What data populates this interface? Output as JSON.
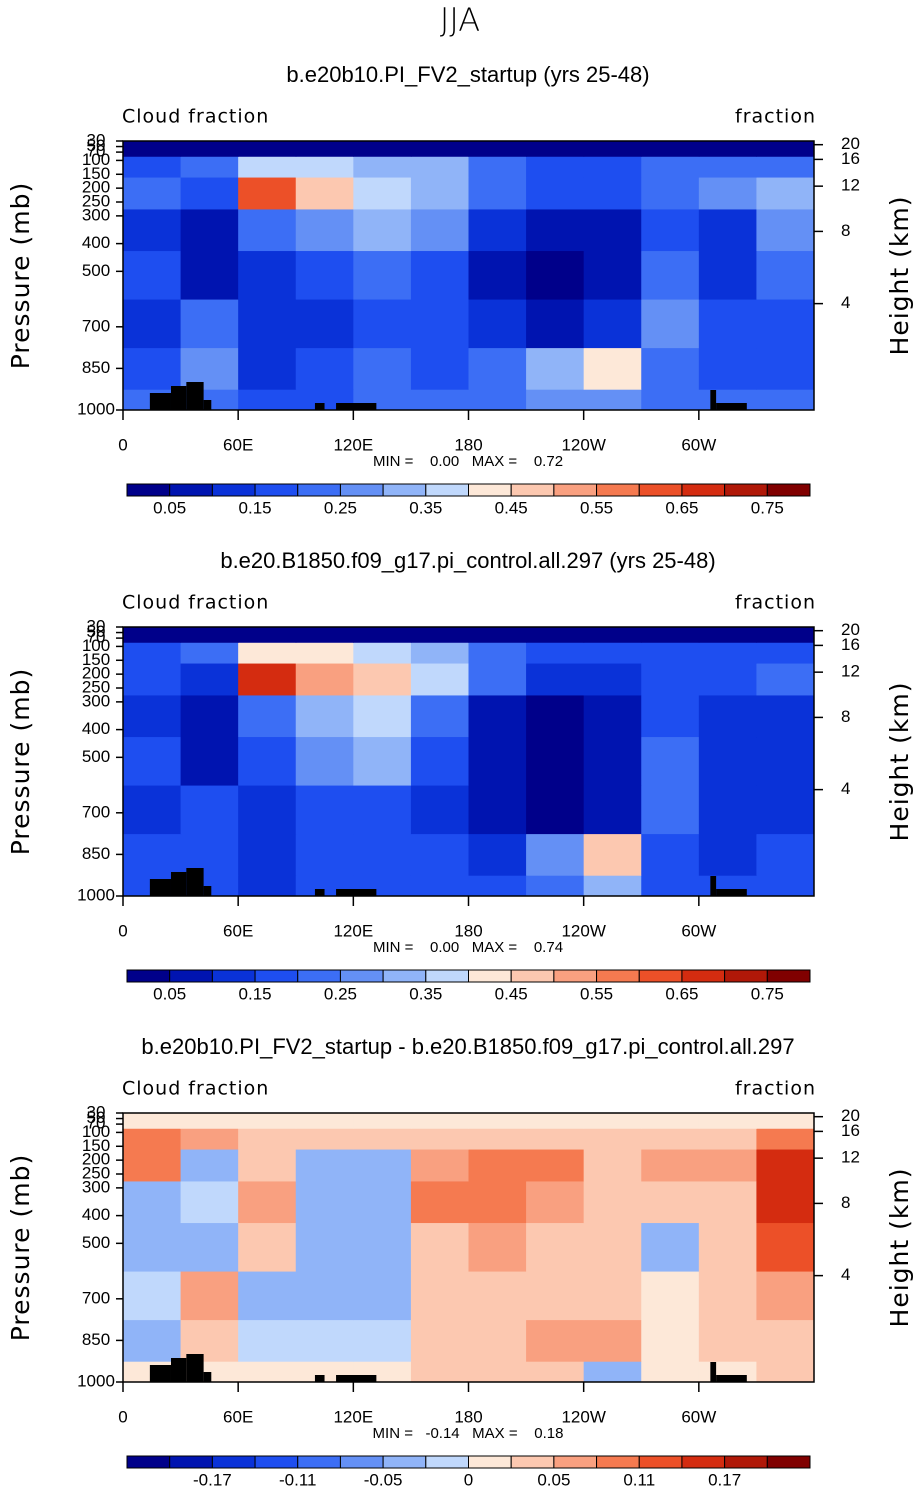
{
  "title": "JJA",
  "chart_data": [
    {
      "type": "contour",
      "title": "b.e20b10.PI_FV2_startup (yrs 25-48)",
      "left_label": "Cloud fraction",
      "right_label": "fraction",
      "ylabel": "Pressure (mb)",
      "y2label": "Height (km)",
      "stats": "MIN =    0.00   MAX =    0.72",
      "xlim": [
        0,
        360
      ],
      "xticks": [
        0,
        {
          "value": 60,
          "label": "60E"
        },
        {
          "value": 120,
          "label": "120E"
        },
        180,
        {
          "value": 240,
          "label": "120W"
        },
        {
          "value": 300,
          "label": "60W"
        }
      ],
      "ylim": [
        1000,
        30
      ],
      "yticks": [
        30,
        50,
        70,
        100,
        150,
        200,
        250,
        300,
        400,
        500,
        700,
        850,
        1000
      ],
      "y2ticks": [
        4,
        8,
        12,
        16,
        20
      ],
      "lon": [
        15,
        45,
        75,
        105,
        135,
        165,
        195,
        225,
        255,
        285,
        315,
        345
      ],
      "lev": [
        1000,
        850,
        700,
        500,
        350,
        200,
        120,
        50
      ],
      "z": [
        [
          0.2,
          0.2,
          0.15,
          0.18,
          0.2,
          0.2,
          0.2,
          0.25,
          0.25,
          0.2,
          0.2,
          0.2
        ],
        [
          0.15,
          0.25,
          0.12,
          0.15,
          0.2,
          0.18,
          0.2,
          0.3,
          0.4,
          0.2,
          0.15,
          0.15
        ],
        [
          0.12,
          0.2,
          0.1,
          0.12,
          0.15,
          0.15,
          0.1,
          0.05,
          0.12,
          0.25,
          0.15,
          0.15
        ],
        [
          0.15,
          0.05,
          0.12,
          0.15,
          0.2,
          0.18,
          0.08,
          0.04,
          0.08,
          0.2,
          0.12,
          0.2
        ],
        [
          0.12,
          0.05,
          0.2,
          0.25,
          0.3,
          0.25,
          0.12,
          0.05,
          0.08,
          0.15,
          0.1,
          0.25
        ],
        [
          0.2,
          0.15,
          0.62,
          0.45,
          0.35,
          0.3,
          0.2,
          0.15,
          0.15,
          0.2,
          0.25,
          0.3
        ],
        [
          0.15,
          0.2,
          0.35,
          0.35,
          0.3,
          0.3,
          0.2,
          0.15,
          0.15,
          0.2,
          0.2,
          0.2
        ],
        [
          0.03,
          0.03,
          0.03,
          0.03,
          0.03,
          0.03,
          0.03,
          0.03,
          0.03,
          0.03,
          0.03,
          0.03
        ]
      ],
      "levels": [
        0.05,
        0.1,
        0.15,
        0.2,
        0.25,
        0.3,
        0.35,
        0.4,
        0.45,
        0.5,
        0.55,
        0.6,
        0.65,
        0.7,
        0.75
      ],
      "level_ticks": [
        0.05,
        0.15,
        0.25,
        0.35,
        0.45,
        0.55,
        0.65,
        0.75
      ],
      "colors": [
        "#00008a",
        "#0014b0",
        "#0a32d8",
        "#1e4ef0",
        "#3c6ef5",
        "#6490f5",
        "#90b4f8",
        "#c0d8fc",
        "#fde8d8",
        "#fcc8b0",
        "#f9a080",
        "#f57a50",
        "#ec5028",
        "#d42c10",
        "#b01808",
        "#800000"
      ]
    },
    {
      "type": "contour",
      "title": "b.e20.B1850.f09_g17.pi_control.all.297 (yrs 25-48)",
      "left_label": "Cloud fraction",
      "right_label": "fraction",
      "ylabel": "Pressure (mb)",
      "y2label": "Height (km)",
      "stats": "MIN =    0.00   MAX =    0.74",
      "xlim": [
        0,
        360
      ],
      "xticks": [
        0,
        {
          "value": 60,
          "label": "60E"
        },
        {
          "value": 120,
          "label": "120E"
        },
        180,
        {
          "value": 240,
          "label": "120W"
        },
        {
          "value": 300,
          "label": "60W"
        }
      ],
      "ylim": [
        1000,
        30
      ],
      "yticks": [
        30,
        50,
        70,
        100,
        150,
        200,
        250,
        300,
        400,
        500,
        700,
        850,
        1000
      ],
      "y2ticks": [
        4,
        8,
        12,
        16,
        20
      ],
      "lon": [
        15,
        45,
        75,
        105,
        135,
        165,
        195,
        225,
        255,
        285,
        315,
        345
      ],
      "lev": [
        1000,
        850,
        700,
        500,
        350,
        200,
        120,
        50
      ],
      "z": [
        [
          0.15,
          0.15,
          0.12,
          0.15,
          0.18,
          0.15,
          0.15,
          0.2,
          0.3,
          0.15,
          0.15,
          0.15
        ],
        [
          0.15,
          0.15,
          0.12,
          0.15,
          0.18,
          0.15,
          0.12,
          0.25,
          0.45,
          0.15,
          0.12,
          0.15
        ],
        [
          0.12,
          0.15,
          0.1,
          0.15,
          0.18,
          0.12,
          0.05,
          0.04,
          0.08,
          0.2,
          0.12,
          0.1
        ],
        [
          0.15,
          0.05,
          0.15,
          0.25,
          0.3,
          0.15,
          0.05,
          0.03,
          0.05,
          0.2,
          0.12,
          0.1
        ],
        [
          0.12,
          0.05,
          0.2,
          0.3,
          0.35,
          0.2,
          0.05,
          0.03,
          0.08,
          0.15,
          0.1,
          0.12
        ],
        [
          0.18,
          0.1,
          0.68,
          0.5,
          0.45,
          0.35,
          0.2,
          0.12,
          0.12,
          0.18,
          0.18,
          0.2
        ],
        [
          0.15,
          0.2,
          0.4,
          0.4,
          0.35,
          0.3,
          0.2,
          0.15,
          0.15,
          0.18,
          0.18,
          0.15
        ],
        [
          0.03,
          0.03,
          0.03,
          0.03,
          0.03,
          0.03,
          0.03,
          0.03,
          0.03,
          0.03,
          0.03,
          0.03
        ]
      ],
      "levels": [
        0.05,
        0.1,
        0.15,
        0.2,
        0.25,
        0.3,
        0.35,
        0.4,
        0.45,
        0.5,
        0.55,
        0.6,
        0.65,
        0.7,
        0.75
      ],
      "level_ticks": [
        0.05,
        0.15,
        0.25,
        0.35,
        0.45,
        0.55,
        0.65,
        0.75
      ],
      "colors": [
        "#00008a",
        "#0014b0",
        "#0a32d8",
        "#1e4ef0",
        "#3c6ef5",
        "#6490f5",
        "#90b4f8",
        "#c0d8fc",
        "#fde8d8",
        "#fcc8b0",
        "#f9a080",
        "#f57a50",
        "#ec5028",
        "#d42c10",
        "#b01808",
        "#800000"
      ]
    },
    {
      "type": "contour",
      "title": "b.e20b10.PI_FV2_startup - b.e20.B1850.f09_g17.pi_control.all.297",
      "left_label": "Cloud fraction",
      "right_label": "fraction",
      "ylabel": "Pressure (mb)",
      "y2label": "Height (km)",
      "stats": "MIN =   -0.14   MAX =    0.18",
      "xlim": [
        0,
        360
      ],
      "xticks": [
        0,
        {
          "value": 60,
          "label": "60E"
        },
        {
          "value": 120,
          "label": "120E"
        },
        180,
        {
          "value": 240,
          "label": "120W"
        },
        {
          "value": 300,
          "label": "60W"
        }
      ],
      "ylim": [
        1000,
        30
      ],
      "yticks": [
        30,
        50,
        70,
        100,
        150,
        200,
        250,
        300,
        400,
        500,
        700,
        850,
        1000
      ],
      "y2ticks": [
        4,
        8,
        12,
        16,
        20
      ],
      "lon": [
        15,
        45,
        75,
        105,
        135,
        165,
        195,
        225,
        255,
        285,
        315,
        345
      ],
      "lev": [
        1000,
        850,
        700,
        500,
        350,
        200,
        120,
        50
      ],
      "z": [
        [
          0.01,
          0.01,
          0.01,
          0.01,
          0.01,
          0.02,
          0.02,
          0.02,
          -0.05,
          0.01,
          0.01,
          0.02
        ],
        [
          -0.03,
          0.02,
          -0.01,
          -0.02,
          -0.02,
          0.03,
          0.04,
          0.05,
          0.06,
          0.01,
          0.03,
          0.02
        ],
        [
          -0.02,
          0.06,
          -0.03,
          -0.04,
          -0.03,
          0.03,
          0.04,
          0.03,
          0.03,
          0,
          0.04,
          0.05
        ],
        [
          -0.04,
          -0.03,
          0.04,
          -0.03,
          -0.05,
          0.03,
          0.05,
          0.03,
          0.03,
          -0.03,
          0.03,
          0.12
        ],
        [
          -0.04,
          -0.02,
          0.05,
          -0.03,
          -0.03,
          0.08,
          0.09,
          0.05,
          0.04,
          0.02,
          0.04,
          0.14
        ],
        [
          0.08,
          -0.05,
          0.03,
          -0.03,
          -0.04,
          0.06,
          0.1,
          0.08,
          0.04,
          0.05,
          0.05,
          0.14
        ],
        [
          0.1,
          0.05,
          0.04,
          0.03,
          0.04,
          0.04,
          0.04,
          0.03,
          0.03,
          0.03,
          0.04,
          0.08
        ],
        [
          0.01,
          0.01,
          0.01,
          0.01,
          0.01,
          0.01,
          0.01,
          0.01,
          0.01,
          0.01,
          0.01,
          0.01
        ]
      ],
      "levels": [
        -0.2,
        -0.17,
        -0.14,
        -0.11,
        -0.08,
        -0.05,
        -0.02,
        0,
        0.02,
        0.05,
        0.08,
        0.11,
        0.14,
        0.17,
        0.2
      ],
      "level_ticks": [
        -0.17,
        -0.11,
        -0.05,
        0,
        0.05,
        0.11,
        0.17
      ],
      "colors": [
        "#00008a",
        "#0014b0",
        "#0a32d8",
        "#1e4ef0",
        "#3c6ef5",
        "#6490f5",
        "#90b4f8",
        "#c0d8fc",
        "#fde8d8",
        "#fcc8b0",
        "#f9a080",
        "#f57a50",
        "#ec5028",
        "#d42c10",
        "#b01808",
        "#800000"
      ]
    }
  ]
}
